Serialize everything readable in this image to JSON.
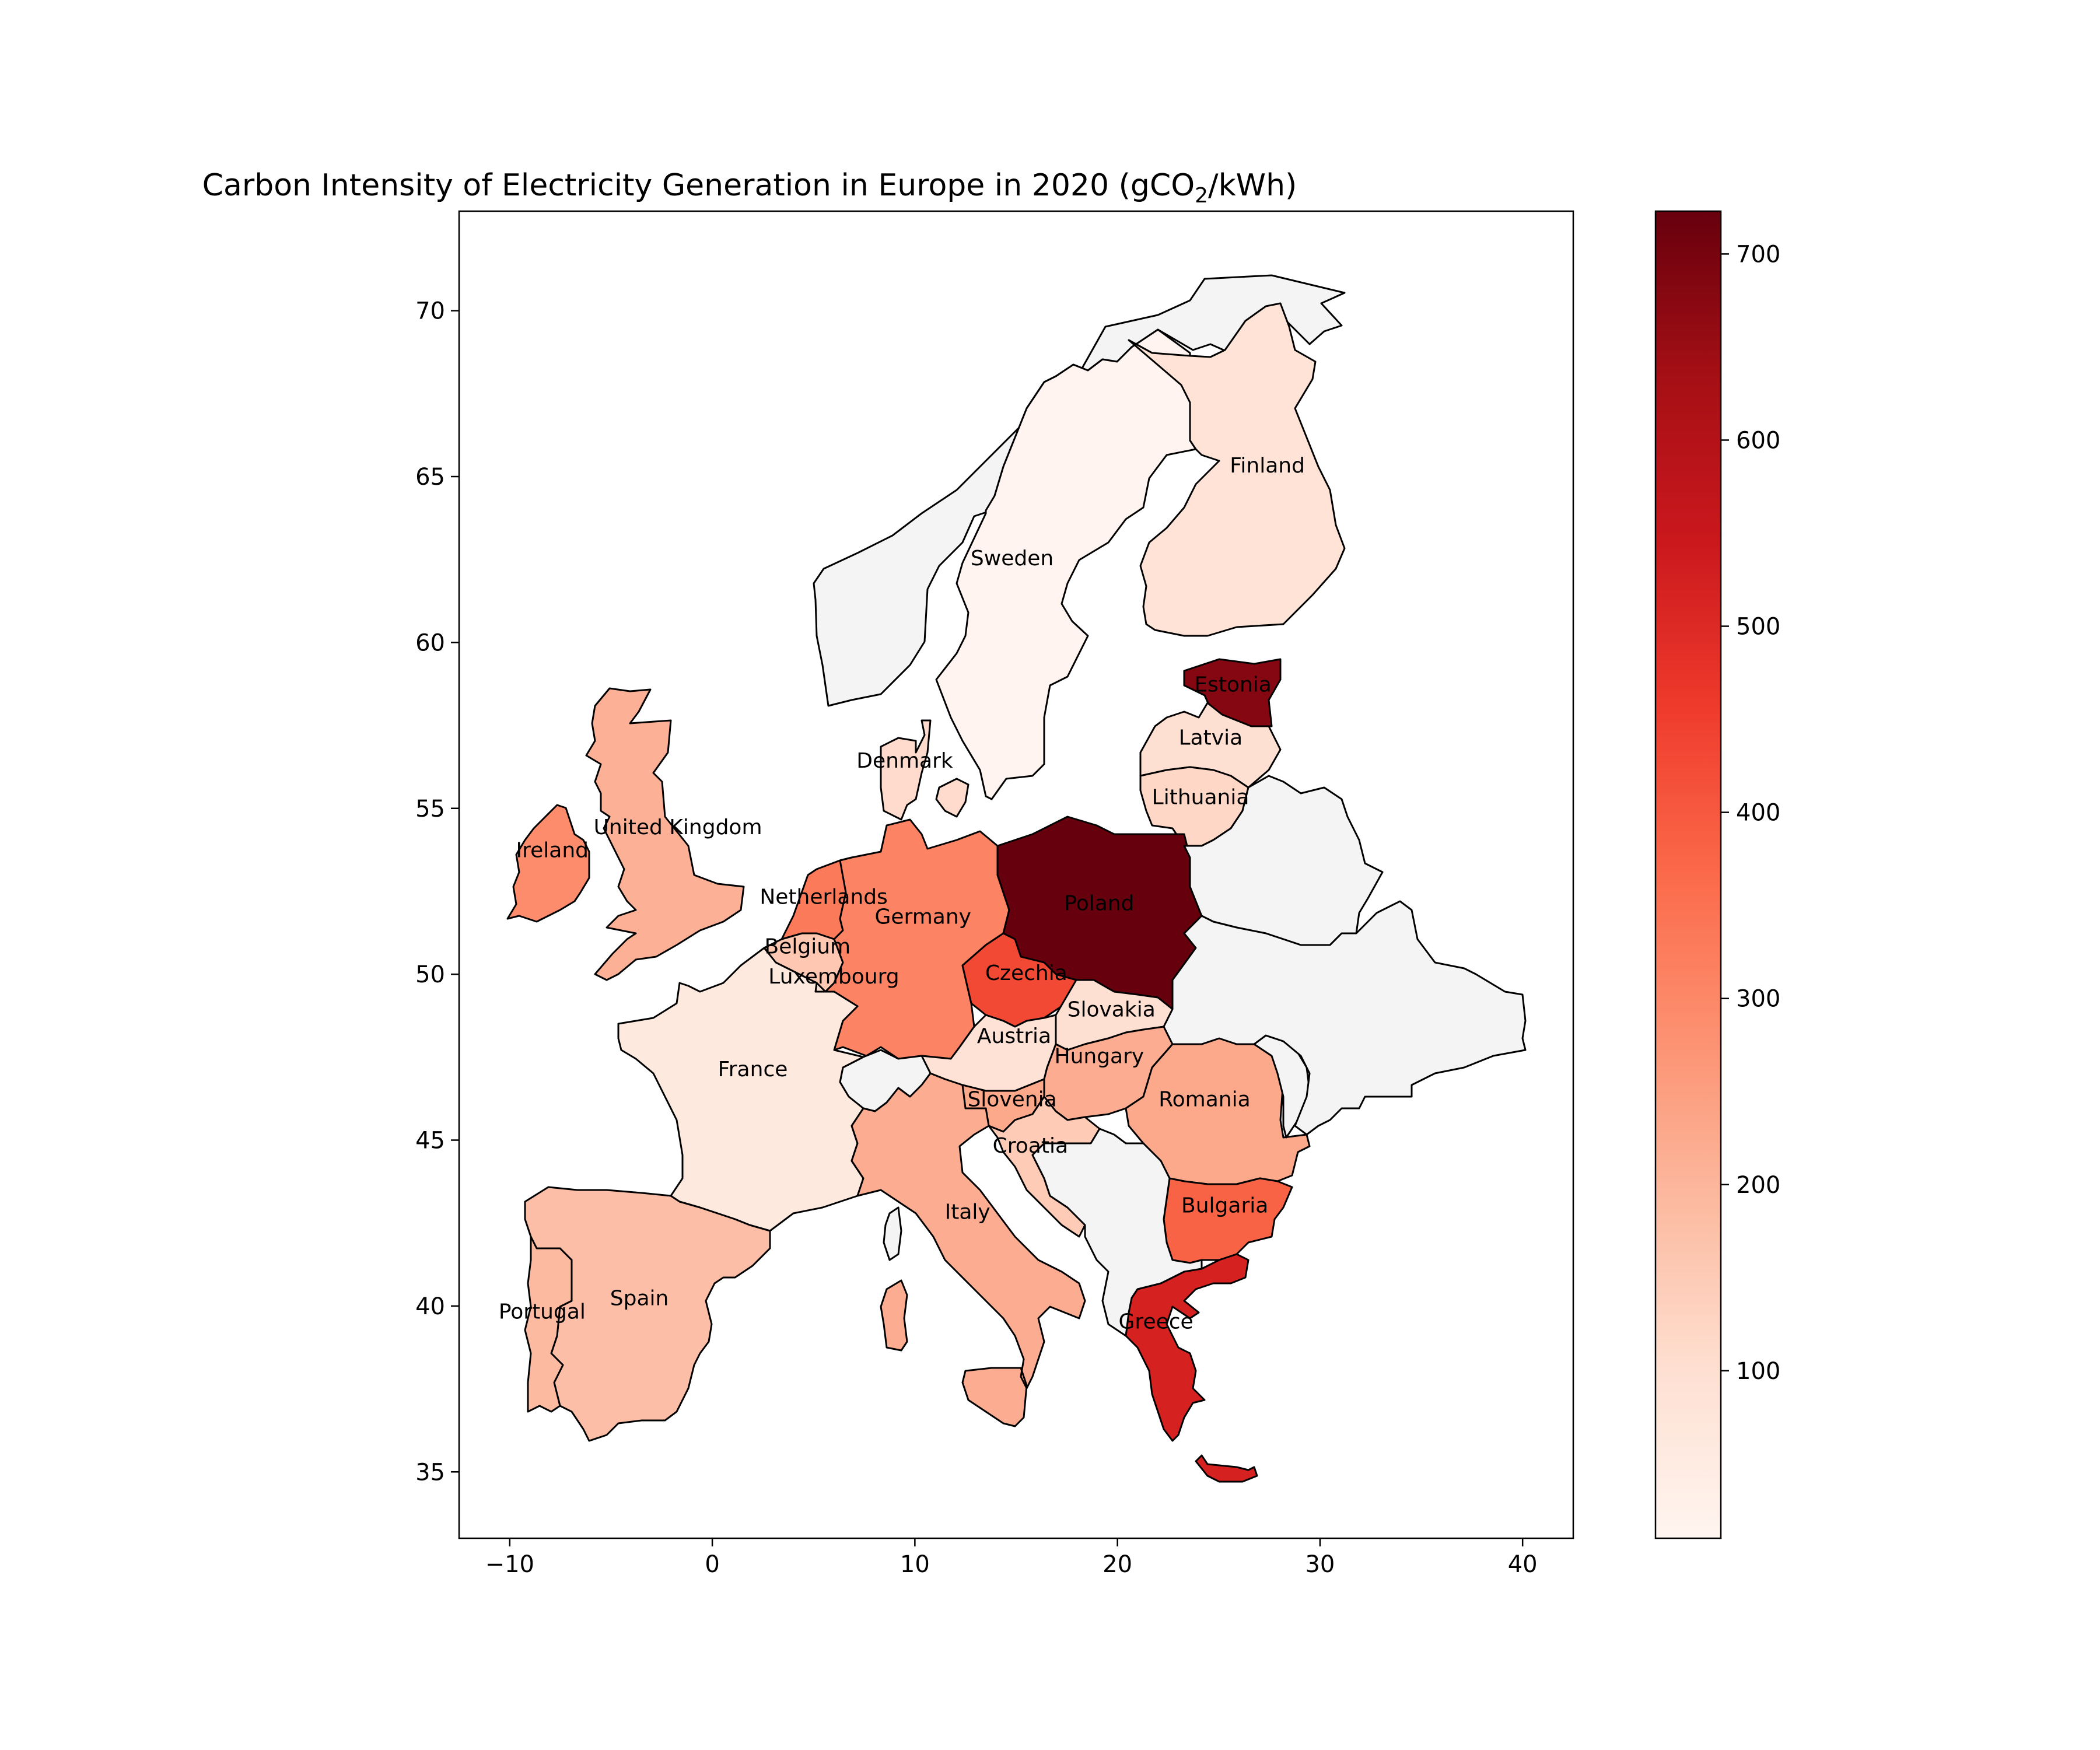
{
  "chart_data": {
    "type": "choropleth",
    "title": "Carbon Intensity of Electricity Generation in Europe in 2020 (gCO",
    "title_sub": "2",
    "title_suffix": "/kWh)",
    "xlim": [
      -12.5,
      42.5
    ],
    "ylim": [
      33,
      73
    ],
    "x_ticks": [
      -10,
      0,
      10,
      20,
      30,
      40
    ],
    "x_tick_labels": [
      "−10",
      "0",
      "10",
      "20",
      "30",
      "40"
    ],
    "y_ticks": [
      35,
      40,
      45,
      50,
      55,
      60,
      65,
      70
    ],
    "y_tick_labels": [
      "35",
      "40",
      "45",
      "50",
      "55",
      "60",
      "65",
      "70"
    ],
    "colorbar": {
      "colormap": "Reds",
      "vmin": 10,
      "vmax": 723,
      "ticks": [
        100,
        200,
        300,
        400,
        500,
        600,
        700
      ],
      "tick_labels": [
        "100",
        "200",
        "300",
        "400",
        "500",
        "600",
        "700"
      ]
    },
    "missing_color": "#f4f4f4",
    "countries": [
      {
        "name": "Sweden",
        "label": "Sweden",
        "value": 13,
        "label_pos": [
          14.8,
          62.5
        ]
      },
      {
        "name": "Finland",
        "label": "Finland",
        "value": 86,
        "label_pos": [
          27.4,
          65.3
        ]
      },
      {
        "name": "Estonia",
        "label": "Estonia",
        "value": 680,
        "label_pos": [
          25.7,
          58.7
        ]
      },
      {
        "name": "Latvia",
        "label": "Latvia",
        "value": 100,
        "label_pos": [
          24.6,
          57.1
        ]
      },
      {
        "name": "Lithuania",
        "label": "Lithuania",
        "value": 120,
        "label_pos": [
          24.1,
          55.3
        ]
      },
      {
        "name": "Denmark",
        "label": "Denmark",
        "value": 110,
        "label_pos": [
          9.5,
          56.4
        ]
      },
      {
        "name": "United Kingdom",
        "label": "United Kingdom",
        "value": 210,
        "label_pos": [
          -1.7,
          54.4
        ]
      },
      {
        "name": "Ireland",
        "label": "Ireland",
        "value": 290,
        "label_pos": [
          -7.9,
          53.7
        ]
      },
      {
        "name": "Netherlands",
        "label": "Netherlands",
        "value": 330,
        "label_pos": [
          5.5,
          52.3
        ]
      },
      {
        "name": "Belgium",
        "label": "Belgium",
        "value": 160,
        "label_pos": [
          4.7,
          50.8
        ]
      },
      {
        "name": "Luxembourg",
        "label": "Luxembourg",
        "value": 100,
        "label_pos": [
          6.0,
          49.9
        ]
      },
      {
        "name": "Germany",
        "label": "Germany",
        "value": 310,
        "label_pos": [
          10.4,
          51.7
        ]
      },
      {
        "name": "Poland",
        "label": "Poland",
        "value": 723,
        "label_pos": [
          19.1,
          52.1
        ]
      },
      {
        "name": "Czechia",
        "label": "Czechia",
        "value": 430,
        "label_pos": [
          15.5,
          50.0
        ]
      },
      {
        "name": "Slovakia",
        "label": "Slovakia",
        "value": 100,
        "label_pos": [
          19.7,
          48.9
        ]
      },
      {
        "name": "Austria",
        "label": "Austria",
        "value": 90,
        "label_pos": [
          14.9,
          48.1
        ]
      },
      {
        "name": "Hungary",
        "label": "Hungary",
        "value": 220,
        "label_pos": [
          19.1,
          47.5
        ]
      },
      {
        "name": "Slovenia",
        "label": "Slovenia",
        "value": 230,
        "label_pos": [
          14.8,
          46.2
        ]
      },
      {
        "name": "Croatia",
        "label": "Croatia",
        "value": 150,
        "label_pos": [
          15.7,
          44.8
        ]
      },
      {
        "name": "Romania",
        "label": "Romania",
        "value": 230,
        "label_pos": [
          24.3,
          46.2
        ]
      },
      {
        "name": "Bulgaria",
        "label": "Bulgaria",
        "value": 380,
        "label_pos": [
          25.3,
          43.0
        ]
      },
      {
        "name": "Greece",
        "label": "Greece",
        "value": 520,
        "label_pos": [
          21.9,
          39.5
        ]
      },
      {
        "name": "France",
        "label": "France",
        "value": 60,
        "label_pos": [
          2.0,
          47.1
        ]
      },
      {
        "name": "Spain",
        "label": "Spain",
        "value": 180,
        "label_pos": [
          -3.6,
          40.2
        ]
      },
      {
        "name": "Portugal",
        "label": "Portugal",
        "value": 190,
        "label_pos": [
          -8.4,
          39.8
        ]
      },
      {
        "name": "Italy",
        "label": "Italy",
        "value": 220,
        "label_pos": [
          12.6,
          42.8
        ]
      },
      {
        "name": "Norway",
        "label": "",
        "value": null,
        "label_pos": null
      },
      {
        "name": "Belarus",
        "label": "",
        "value": null,
        "label_pos": null
      },
      {
        "name": "Ukraine",
        "label": "",
        "value": null,
        "label_pos": null
      },
      {
        "name": "Switzerland",
        "label": "",
        "value": null,
        "label_pos": null
      },
      {
        "name": "Moldova",
        "label": "",
        "value": null,
        "label_pos": null
      },
      {
        "name": "Balkans",
        "label": "",
        "value": null,
        "label_pos": null
      }
    ]
  }
}
